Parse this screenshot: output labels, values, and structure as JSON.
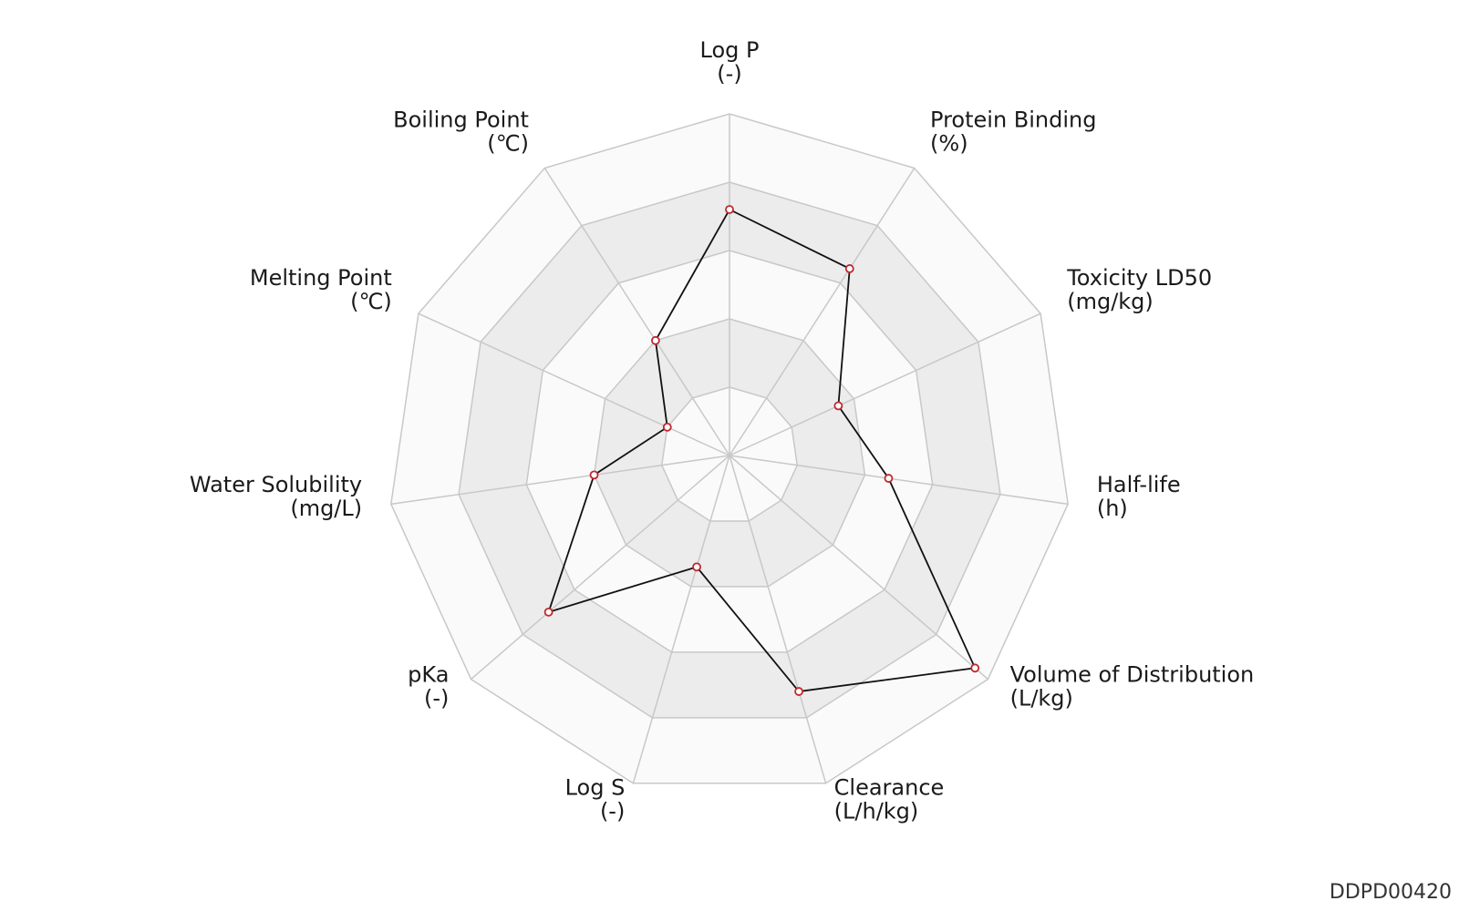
{
  "chart_data": {
    "type": "radar",
    "axes": [
      {
        "name": "Log P",
        "unit": "(-)"
      },
      {
        "name": "Protein Binding",
        "unit": "(%)"
      },
      {
        "name": "Toxicity LD50",
        "unit": "(mg/kg)"
      },
      {
        "name": "Half-life",
        "unit": "(h)"
      },
      {
        "name": "Volume of Distribution",
        "unit": "(L/kg)"
      },
      {
        "name": "Clearance",
        "unit": "(L/h/kg)"
      },
      {
        "name": "Log S",
        "unit": "(-)"
      },
      {
        "name": "pKa",
        "unit": "(-)"
      },
      {
        "name": "Water Solubility",
        "unit": "(mg/L)"
      },
      {
        "name": "Melting Point",
        "unit": "(℃)"
      },
      {
        "name": "Boiling Point",
        "unit": "(℃)"
      }
    ],
    "levels": 5,
    "values": [
      0.72,
      0.65,
      0.35,
      0.47,
      0.95,
      0.72,
      0.34,
      0.7,
      0.4,
      0.2,
      0.4
    ],
    "colors": {
      "line": "#111111",
      "marker": "#c0282d",
      "band_dark": "#ececec",
      "band_light": "#fafafa",
      "grid": "#c8c8c8"
    }
  },
  "footer": {
    "code": "DDPD00420"
  }
}
